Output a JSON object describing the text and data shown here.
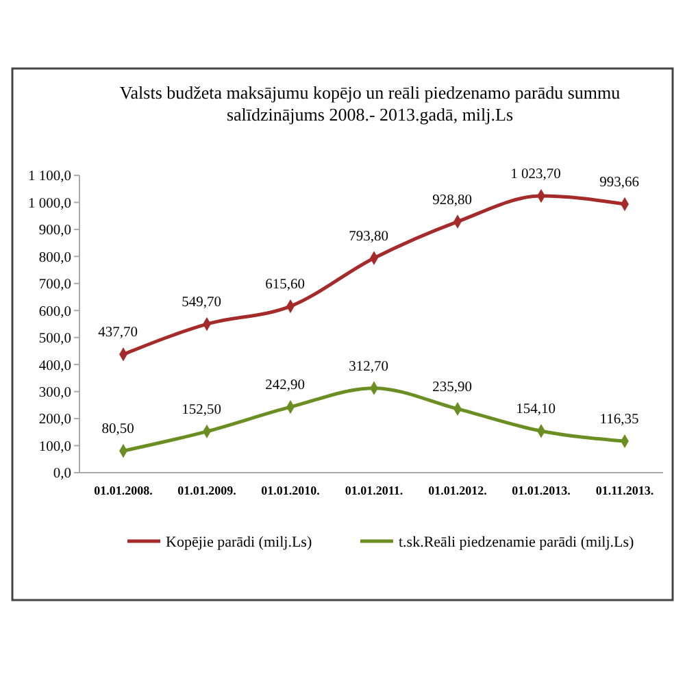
{
  "chart_data": {
    "type": "line",
    "title": "Valsts budžeta maksājumu kopējo un reāli piedzenamo parādu summu salīdzinājums 2008.- 2013.gadā, milj.Ls",
    "categories": [
      "01.01.2008.",
      "01.01.2009.",
      "01.01.2010.",
      "01.01.2011.",
      "01.01.2012.",
      "01.01.2013.",
      "01.11.2013."
    ],
    "series": [
      {
        "name": "Kopējie parādi (milj.Ls)",
        "color": "#a52a2a",
        "values": [
          437.7,
          549.7,
          615.6,
          793.8,
          928.8,
          1023.7,
          993.66
        ],
        "value_labels": [
          "437,70",
          "549,70",
          "615,60",
          "793,80",
          "928,80",
          "1 023,70",
          "993,66"
        ]
      },
      {
        "name": "t.sk.Reāli piedzenamie parādi (milj.Ls)",
        "color": "#6b8e23",
        "values": [
          80.5,
          152.5,
          242.9,
          312.7,
          235.9,
          154.1,
          116.35
        ],
        "value_labels": [
          "80,50",
          "152,50",
          "242,90",
          "312,70",
          "235,90",
          "154,10",
          "116,35"
        ]
      }
    ],
    "ylim": [
      0,
      1100
    ],
    "yticks": [
      {
        "value": 0,
        "label": "0,0"
      },
      {
        "value": 100,
        "label": "100,0"
      },
      {
        "value": 200,
        "label": "200,0"
      },
      {
        "value": 300,
        "label": "300,0"
      },
      {
        "value": 400,
        "label": "400,0"
      },
      {
        "value": 500,
        "label": "500,0"
      },
      {
        "value": 600,
        "label": "600,0"
      },
      {
        "value": 700,
        "label": "700,0"
      },
      {
        "value": 800,
        "label": "800,0"
      },
      {
        "value": 900,
        "label": "900,0"
      },
      {
        "value": 1000,
        "label": "1 000,0"
      },
      {
        "value": 1100,
        "label": "1 100,0"
      }
    ],
    "grid": false,
    "legend": "bottom",
    "marker": "diamond",
    "line_style": "solid"
  }
}
